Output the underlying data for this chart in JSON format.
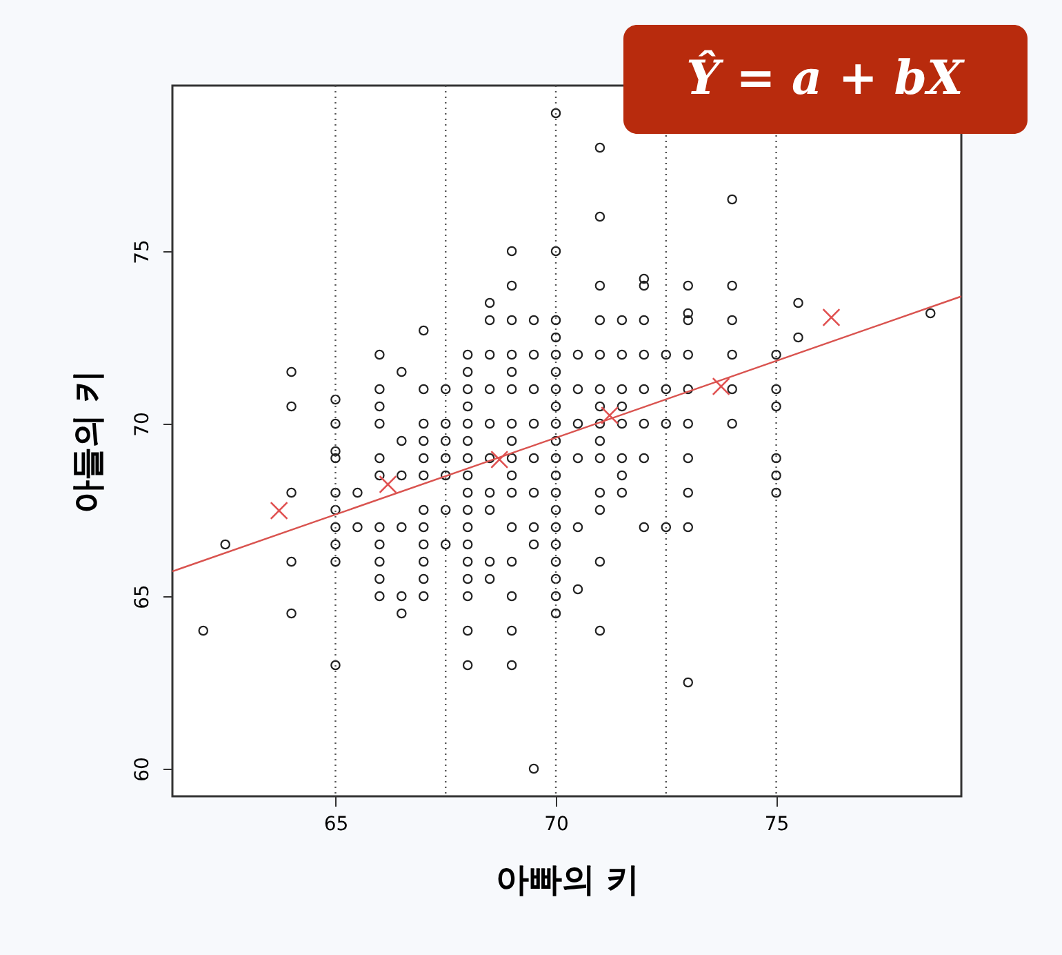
{
  "chart_data": {
    "type": "scatter",
    "xlabel": "아빠의 키",
    "ylabel": "아들의 키",
    "annotations": [
      "Ŷ = a + bX"
    ],
    "xlim": [
      61.3,
      79.2
    ],
    "ylim": [
      59.2,
      79.8
    ],
    "xticks": [
      65,
      70,
      75
    ],
    "yticks": [
      60,
      65,
      70,
      75
    ],
    "grid": false,
    "ref_lines": [
      {
        "axis": "x",
        "value": 65,
        "color": "#555555",
        "line_style": "dotted"
      },
      {
        "axis": "x",
        "value": 67.5,
        "color": "#555555",
        "line_style": "dotted"
      },
      {
        "axis": "x",
        "value": 70,
        "color": "#555555",
        "line_style": "dotted"
      },
      {
        "axis": "x",
        "value": 72.5,
        "color": "#555555",
        "line_style": "dotted"
      },
      {
        "axis": "x",
        "value": 75,
        "color": "#555555",
        "line_style": "dotted"
      }
    ],
    "series": [
      {
        "marker": "circle",
        "color": "#222222",
        "x": [
          62,
          62.5,
          64,
          64,
          64,
          64,
          64,
          65,
          65,
          65,
          65,
          65,
          65,
          65,
          65,
          65,
          65,
          65.5,
          65.5,
          66,
          66,
          66,
          66,
          66,
          66,
          66,
          66,
          66,
          66,
          66,
          66.5,
          66.5,
          66.5,
          66.5,
          66.5,
          66.5,
          67,
          67,
          67,
          67,
          67,
          67,
          67,
          67,
          67,
          67,
          67,
          67,
          67.5,
          67.5,
          67.5,
          67.5,
          67.5,
          67.5,
          67.5,
          68,
          68,
          68,
          68,
          68,
          68,
          68,
          68,
          68,
          68,
          68,
          68,
          68,
          68,
          68,
          68,
          68,
          68.5,
          68.5,
          68.5,
          68.5,
          68.5,
          68.5,
          68.5,
          68.5,
          68.5,
          68.5,
          69,
          69,
          69,
          69,
          69,
          69,
          69,
          69,
          69,
          69,
          69,
          69,
          69,
          69,
          69,
          69,
          69.5,
          69.5,
          69.5,
          69.5,
          69.5,
          69.5,
          69.5,
          69.5,
          69.5,
          70,
          70,
          70,
          70,
          70,
          70,
          70,
          70,
          70,
          70,
          70,
          70,
          70,
          70,
          70,
          70,
          70,
          70,
          70,
          70,
          70.5,
          70.5,
          70.5,
          70.5,
          70.5,
          70.5,
          71,
          71,
          71,
          71,
          71,
          71,
          71,
          71,
          71,
          71,
          71,
          71,
          71,
          71,
          71.5,
          71.5,
          71.5,
          71.5,
          71.5,
          71.5,
          71.5,
          71.5,
          72,
          72,
          72,
          72,
          72,
          72,
          72,
          72,
          72.5,
          72.5,
          72.5,
          72.5,
          73,
          73,
          73,
          73,
          73,
          73,
          73,
          73,
          73,
          73,
          74,
          74,
          74,
          74,
          74,
          74,
          75,
          75,
          75,
          75,
          75,
          75,
          75.5,
          75.5,
          78.5
        ],
        "values": [
          64,
          66.5,
          71.5,
          70.5,
          68,
          66,
          64.5,
          70.7,
          70,
          69.2,
          69,
          68,
          67.5,
          67,
          66.5,
          66,
          63,
          68,
          67,
          72,
          71,
          70.5,
          70,
          69,
          68.5,
          67,
          66.5,
          66,
          65.5,
          65,
          71.5,
          69.5,
          68.5,
          67,
          65,
          64.5,
          72.7,
          71,
          70,
          69.5,
          69,
          68.5,
          67.5,
          67,
          66.5,
          66,
          65.5,
          65,
          71,
          70,
          69.5,
          69,
          68.5,
          67.5,
          66.5,
          72,
          71.5,
          71,
          70.5,
          70,
          69.5,
          69,
          68.5,
          68,
          67.5,
          67,
          66.5,
          66,
          65.5,
          65,
          64,
          63,
          73.5,
          73,
          72,
          71,
          70,
          69,
          68,
          67.5,
          66,
          65.5,
          75,
          74,
          73,
          72,
          71.5,
          71,
          70,
          69.5,
          69,
          68.5,
          68,
          67,
          66,
          65,
          64,
          63,
          73,
          72,
          71,
          70,
          69,
          68,
          67,
          66.5,
          60,
          79,
          75,
          73,
          72.5,
          72,
          71.5,
          71,
          70.5,
          70,
          69.5,
          69,
          68.5,
          68,
          67.5,
          67,
          66.5,
          66,
          65.5,
          65,
          64.5,
          72,
          71,
          70,
          69,
          67,
          65.2,
          78,
          76,
          74,
          73,
          72,
          71,
          70.5,
          70,
          69.5,
          69,
          68,
          67.5,
          66,
          64,
          73,
          72,
          71,
          70.5,
          70,
          69,
          68.5,
          68,
          74.2,
          74,
          73,
          72,
          71,
          70,
          69,
          67,
          72,
          71,
          70,
          67,
          74,
          73.2,
          73,
          72,
          71,
          70,
          69,
          68,
          67,
          62.5,
          76.5,
          74,
          73,
          72,
          71,
          70,
          72,
          71,
          70.5,
          69,
          68.5,
          68,
          73.5,
          72.5,
          73.2
        ]
      },
      {
        "type": "line",
        "marker": "none",
        "color": "#d9534f",
        "x": [
          61.3,
          79.2
        ],
        "values": [
          65.72,
          73.69
        ]
      },
      {
        "marker": "cross",
        "color": "#e05050",
        "x": [
          63.72,
          66.19,
          68.72,
          71.22,
          73.75,
          76.25
        ],
        "values": [
          67.48,
          68.24,
          68.96,
          70.24,
          71.08,
          73.08
        ]
      }
    ]
  }
}
